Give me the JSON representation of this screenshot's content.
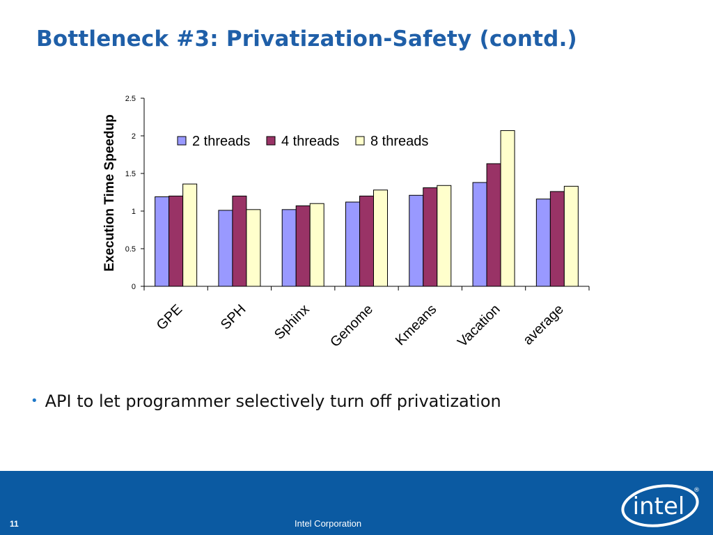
{
  "slide": {
    "title": "Bottleneck #3: Privatization-Safety (contd.)",
    "bullets": [
      "API to let programmer selectively turn off privatization"
    ],
    "page_number": "11",
    "footer_text": "Intel Corporation",
    "logo_text": "intel"
  },
  "colors": {
    "title": "#1f5fa8",
    "footer_bg": "#0b5aa2",
    "bullet": "#1f78c8"
  },
  "chart_data": {
    "type": "bar",
    "title": "",
    "xlabel": "",
    "ylabel": "Execution Time Speedup",
    "ylim": [
      0,
      2.5
    ],
    "yticks": [
      "0",
      "0.5",
      "1",
      "1.5",
      "2",
      "2.5"
    ],
    "categories": [
      "GPE",
      "SPH",
      "Sphinx",
      "Genome",
      "Kmeans",
      "Vacation",
      "average"
    ],
    "series": [
      {
        "name": "2 threads",
        "color": "#9999ff",
        "values": [
          1.19,
          1.01,
          1.02,
          1.12,
          1.21,
          1.38,
          1.16
        ]
      },
      {
        "name": "4 threads",
        "color": "#993366",
        "values": [
          1.2,
          1.2,
          1.07,
          1.2,
          1.31,
          1.63,
          1.26
        ]
      },
      {
        "name": "8 threads",
        "color": "#ffffcc",
        "values": [
          1.36,
          1.02,
          1.1,
          1.28,
          1.34,
          2.07,
          1.33
        ]
      }
    ],
    "grid": false,
    "legend_position": "top-center",
    "xtick_rotation": "-45"
  }
}
